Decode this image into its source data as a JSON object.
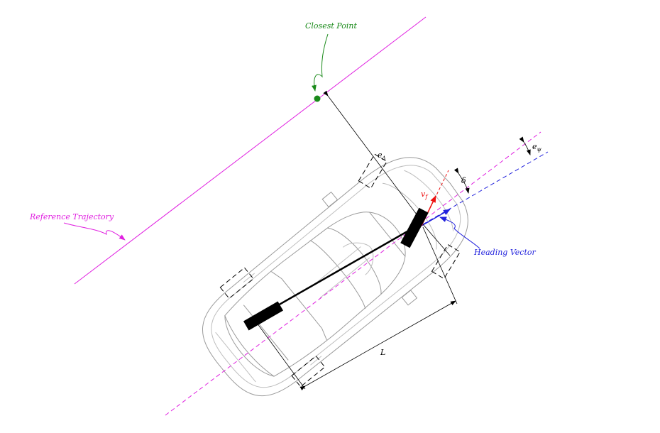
{
  "labels": {
    "closest_point": "Closest Point",
    "reference_trajectory": "Reference Trajectory",
    "heading_vector": "Heading Vector",
    "lateral_error": "e",
    "lateral_error_sub": "Δ",
    "heading_error": "e",
    "heading_error_sub": "ψ",
    "steer_angle": "δ",
    "front_velocity": "v",
    "front_velocity_sub": "f",
    "wheelbase": "L"
  },
  "colors": {
    "closest_point": "#1a8a1a",
    "reference_trajectory": "#e020e0",
    "heading": "#2222dd",
    "velocity": "#ee1111",
    "dimension": "#000000",
    "car_outline": "#999999"
  }
}
